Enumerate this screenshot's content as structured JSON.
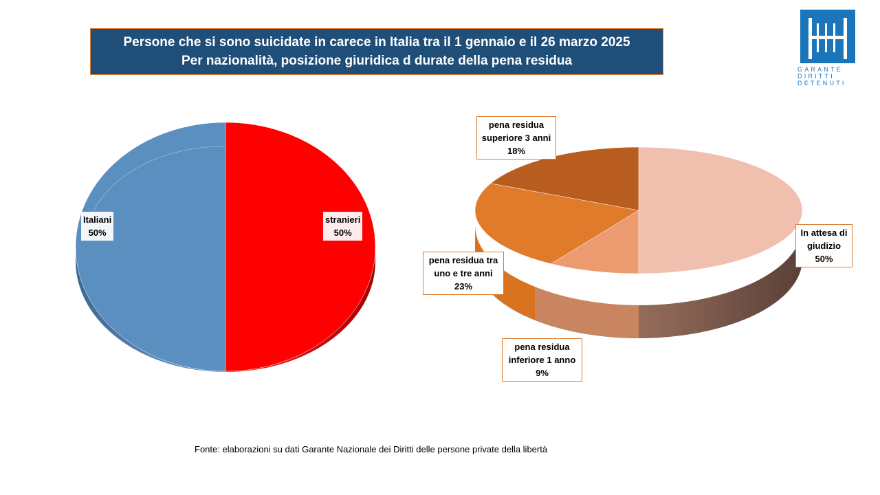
{
  "title": {
    "line1": "Persone che si sono suicidate in carece in Italia tra il 1 gennaio  e il 26 marzo 2025",
    "line2": "Per nazionalità, posizione giuridica d durate della pena residua"
  },
  "logo": {
    "line1": "GARANTE",
    "line2": "DIRITTI",
    "line3": "DETENUTI",
    "color": "#1b75bb"
  },
  "source": "Fonte: elaborazioni su dati Garante Nazionale dei Diritti delle persone private della libertà",
  "colors": {
    "title_bg": "#1f4e79",
    "italiani": "#5b8fc0",
    "stranieri": "#ff0000",
    "attesa": "#f0bfae",
    "inferiore": "#ec9a70",
    "tra": "#e07b2c",
    "superiore": "#b85c1f"
  },
  "chart_data": [
    {
      "type": "pie",
      "title": "",
      "slices": [
        {
          "label": "stranieri",
          "value": 50,
          "pct_label": "50%"
        },
        {
          "label": "Italiani",
          "value": 50,
          "pct_label": "50%"
        }
      ]
    },
    {
      "type": "pie",
      "title": "",
      "slices": [
        {
          "label_lines": [
            "In attesa di",
            "giudizio"
          ],
          "value": 50,
          "pct_label": "50%"
        },
        {
          "label_lines": [
            "pena residua",
            "inferiore 1 anno"
          ],
          "value": 9,
          "pct_label": "9%"
        },
        {
          "label_lines": [
            "pena residua tra",
            "uno e tre anni"
          ],
          "value": 23,
          "pct_label": "23%"
        },
        {
          "label_lines": [
            "pena residua",
            "superiore 3 anni"
          ],
          "value": 18,
          "pct_label": "18%"
        }
      ]
    }
  ]
}
